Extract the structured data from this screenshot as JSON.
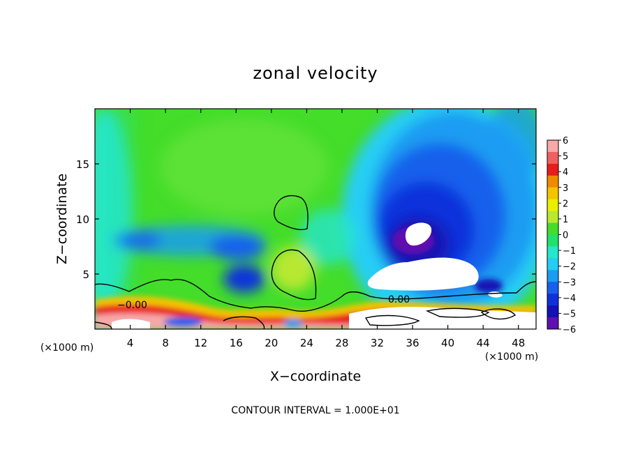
{
  "chart_data": {
    "type": "heatmap",
    "title": "zonal velocity",
    "xlabel": "X−coordinate",
    "ylabel": "Z−coordinate",
    "x_unit_left": "(×1000 m)",
    "x_unit_right": "(×1000 m)",
    "xlim": [
      0,
      50
    ],
    "ylim": [
      0,
      20
    ],
    "x_ticks": [
      4,
      8,
      12,
      16,
      20,
      24,
      28,
      32,
      36,
      40,
      44,
      48
    ],
    "y_ticks": [
      5,
      10,
      15
    ],
    "colorbar": {
      "levels": [
        "6",
        "5",
        "4",
        "3",
        "2",
        "1",
        "0",
        "−1",
        "−2",
        "−3",
        "−4",
        "−5",
        "−6"
      ],
      "colors": [
        "#f7a8a8",
        "#f06060",
        "#e81c1c",
        "#f08a00",
        "#f5c400",
        "#e8f000",
        "#b8e830",
        "#44dd2a",
        "#22e06e",
        "#26e6cc",
        "#25cdf4",
        "#1a9cf2",
        "#1660ec",
        "#0f30dc",
        "#1412b4",
        "#6010b0"
      ]
    },
    "contour_labels": [
      {
        "text": "−0.00",
        "x": 6.5,
        "z": 2.3
      },
      {
        "text": "0.00",
        "x": 34.5,
        "z": 2.4
      }
    ],
    "footer": "CONTOUR INTERVAL = 1.000E+01"
  }
}
